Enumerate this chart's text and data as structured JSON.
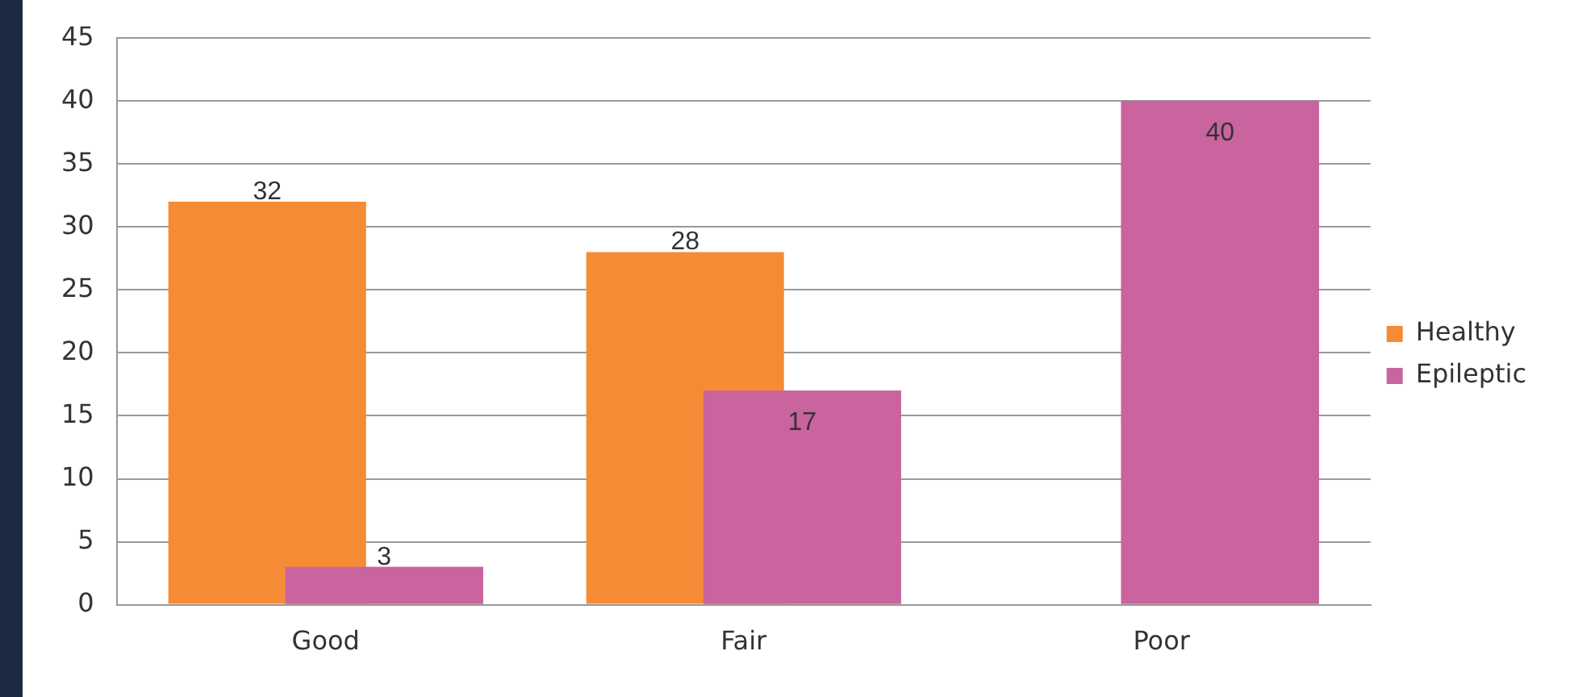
{
  "chart_data": {
    "type": "bar",
    "categories": [
      "Good",
      "Fair",
      "Poor"
    ],
    "series": [
      {
        "name": "Healthy",
        "color": "#f68b36",
        "values": [
          32,
          28,
          null
        ]
      },
      {
        "name": "Epileptic",
        "color": "#c9649f",
        "values": [
          3,
          17,
          40
        ]
      }
    ],
    "ylim": [
      0,
      45
    ],
    "yticks": [
      0,
      5,
      10,
      15,
      20,
      25,
      30,
      35,
      40,
      45
    ],
    "grid": "y",
    "legend": "right",
    "data_labels": true
  }
}
